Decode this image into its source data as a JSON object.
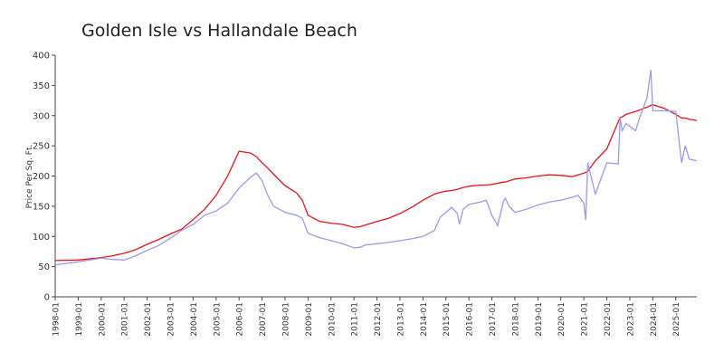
{
  "chart_data": {
    "type": "line",
    "title": "Golden Isle vs Hallandale Beach",
    "y_label": "Price Per Sq. Ft.",
    "x": [
      "1998-01",
      "1999-01",
      "2000-01",
      "2000-07",
      "2001-01",
      "2001-07",
      "2002-01",
      "2002-07",
      "2003-01",
      "2003-07",
      "2004-01",
      "2004-07",
      "2005-01",
      "2005-07",
      "2006-01",
      "2006-07",
      "2006-10",
      "2007-01",
      "2007-04",
      "2007-07",
      "2008-01",
      "2008-07",
      "2008-10",
      "2009-01",
      "2009-07",
      "2010-01",
      "2010-07",
      "2011-01",
      "2011-04",
      "2011-07",
      "2012-01",
      "2012-07",
      "2013-01",
      "2013-07",
      "2014-01",
      "2014-07",
      "2014-10",
      "2015-01",
      "2015-04",
      "2015-07",
      "2015-08",
      "2015-10",
      "2016-01",
      "2016-07",
      "2016-10",
      "2017-01",
      "2017-04",
      "2017-07",
      "2017-08",
      "2017-10",
      "2018-01",
      "2018-07",
      "2019-01",
      "2019-07",
      "2020-01",
      "2020-07",
      "2020-10",
      "2021-01",
      "2021-02",
      "2021-03",
      "2021-07",
      "2022-01",
      "2022-07",
      "2022-08",
      "2022-09",
      "2022-11",
      "2023-04",
      "2023-06",
      "2023-10",
      "2023-12",
      "2024-01",
      "2024-07",
      "2025-01",
      "2025-04",
      "2025-06",
      "2025-08",
      "2025-12"
    ],
    "series": [
      {
        "color": "#e8141b",
        "values": [
          60,
          61,
          65,
          68,
          72,
          78,
          87,
          95,
          104,
          112,
          128,
          145,
          168,
          200,
          241,
          238,
          232,
          222,
          213,
          203,
          184,
          172,
          160,
          135,
          125,
          122,
          120,
          115,
          116,
          119,
          125,
          130,
          138,
          148,
          160,
          170,
          173,
          175,
          176,
          178,
          179,
          181,
          183,
          185,
          185,
          186,
          188,
          190,
          190,
          192,
          195,
          197,
          200,
          202,
          201,
          199,
          202,
          205,
          206,
          208,
          225,
          245,
          290,
          297,
          298,
          302,
          307,
          309,
          314,
          317,
          318,
          312,
          302,
          296,
          296,
          294,
          292
        ]
      },
      {
        "color": "#9a9aee",
        "values": [
          53,
          58,
          64,
          62,
          61,
          68,
          77,
          85,
          97,
          110,
          120,
          135,
          142,
          155,
          180,
          198,
          205,
          192,
          168,
          150,
          140,
          135,
          130,
          105,
          98,
          93,
          88,
          81,
          82,
          86,
          88,
          90,
          93,
          96,
          100,
          110,
          132,
          140,
          148,
          138,
          120,
          145,
          153,
          157,
          160,
          135,
          118,
          158,
          163,
          150,
          140,
          145,
          152,
          157,
          160,
          165,
          168,
          155,
          127,
          222,
          170,
          222,
          220,
          296,
          275,
          287,
          275,
          295,
          330,
          376,
          308,
          308,
          307,
          222,
          250,
          228,
          225
        ]
      }
    ],
    "xlim": [
      "1998-01",
      "2025-12"
    ],
    "xticks": [
      "1998-01",
      "1999-01",
      "2000-01",
      "2001-01",
      "2002-01",
      "2003-01",
      "2004-01",
      "2005-01",
      "2006-01",
      "2007-01",
      "2008-01",
      "2009-01",
      "2010-01",
      "2011-01",
      "2012-01",
      "2013-01",
      "2014-01",
      "2015-01",
      "2016-01",
      "2017-01",
      "2018-01",
      "2019-01",
      "2020-01",
      "2021-01",
      "2022-01",
      "2023-01",
      "2024-01",
      "2025-01"
    ],
    "ylim": [
      0,
      400
    ],
    "yticks": [
      0,
      50,
      100,
      150,
      200,
      250,
      300,
      350,
      400
    ]
  }
}
